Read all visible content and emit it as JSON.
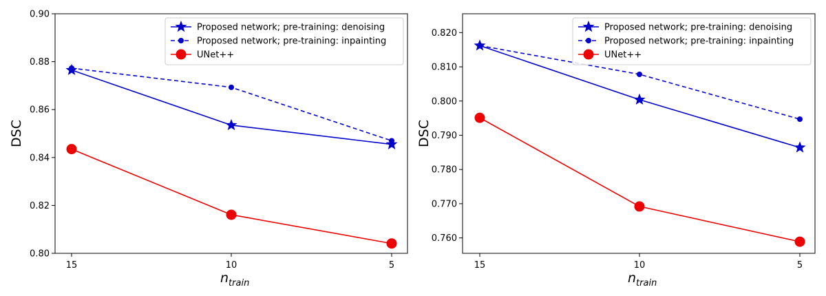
{
  "chart_data": [
    {
      "type": "line",
      "xlabel": "n",
      "xlabel_subscript": "train",
      "ylabel": "DSC",
      "x": [
        15,
        10,
        5
      ],
      "x_ticks": [
        "15",
        "10",
        "5"
      ],
      "ylim": [
        0.8,
        0.9
      ],
      "y_ticks": [
        "0.80",
        "0.82",
        "0.84",
        "0.86",
        "0.88",
        "0.90"
      ],
      "legend_position": "top-right",
      "grid": false,
      "series": [
        {
          "name": "Proposed network; pre-training: denoising",
          "values": [
            0.8765,
            0.8535,
            0.8455
          ],
          "color": "#0000cc",
          "linestyle": "solid",
          "marker": "star"
        },
        {
          "name": "Proposed network; pre-training: inpainting",
          "values": [
            0.8773,
            0.8693,
            0.847
          ],
          "color": "#0000cc",
          "linestyle": "dashed",
          "marker": "dot"
        },
        {
          "name": "UNet++",
          "values": [
            0.8435,
            0.8161,
            0.8041
          ],
          "color": "#ee0000",
          "linestyle": "solid",
          "marker": "circle"
        }
      ]
    },
    {
      "type": "line",
      "xlabel": "n",
      "xlabel_subscript": "train",
      "ylabel": "DSC",
      "x": [
        15,
        10,
        5
      ],
      "x_ticks": [
        "15",
        "10",
        "5"
      ],
      "ylim": [
        0.7555,
        0.8255
      ],
      "y_ticks": [
        "0.760",
        "0.770",
        "0.780",
        "0.790",
        "0.800",
        "0.810",
        "0.820"
      ],
      "legend_position": "top-right",
      "grid": false,
      "series": [
        {
          "name": "Proposed network; pre-training: denoising",
          "values": [
            0.8162,
            0.8004,
            0.7864
          ],
          "color": "#0000cc",
          "linestyle": "solid",
          "marker": "star"
        },
        {
          "name": "Proposed network; pre-training: inpainting",
          "values": [
            0.8162,
            0.8078,
            0.7947
          ],
          "color": "#0000cc",
          "linestyle": "dashed",
          "marker": "dot"
        },
        {
          "name": "UNet++",
          "values": [
            0.7951,
            0.7692,
            0.7589
          ],
          "color": "#ee0000",
          "linestyle": "solid",
          "marker": "circle"
        }
      ]
    }
  ]
}
